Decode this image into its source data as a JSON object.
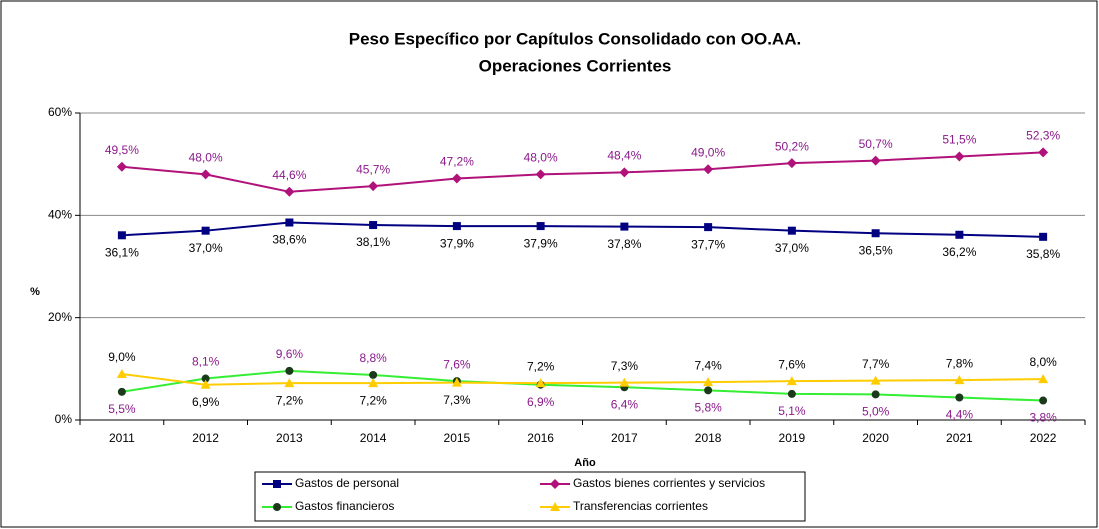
{
  "chart_data": {
    "type": "line",
    "title": "Peso Específico por Capítulos Consolidado con OO.AA.",
    "subtitle": "Operaciones Corrientes",
    "x_label": "Año",
    "y_label": "%",
    "categories": [
      "2011",
      "2012",
      "2013",
      "2014",
      "2015",
      "2016",
      "2017",
      "2018",
      "2019",
      "2020",
      "2021",
      "2022"
    ],
    "ylim": [
      0,
      60
    ],
    "yticks": [
      {
        "value": 0,
        "label": "0%"
      },
      {
        "value": 20,
        "label": "20%"
      },
      {
        "value": 40,
        "label": "40%"
      },
      {
        "value": 60,
        "label": "60%"
      }
    ],
    "grid": true,
    "legend": "bottom",
    "series": [
      {
        "name": "Gastos de personal",
        "color": "#000080",
        "marker": "square",
        "marker_color": "#000080",
        "label_color": "#000000",
        "values": [
          36.1,
          37.0,
          38.6,
          38.1,
          37.9,
          37.9,
          37.8,
          37.7,
          37.0,
          36.5,
          36.2,
          35.8
        ],
        "value_labels": [
          "36,1%",
          "37,0%",
          "38,6%",
          "38,1%",
          "37,9%",
          "37,9%",
          "37,8%",
          "37,7%",
          "37,0%",
          "36,5%",
          "36,2%",
          "35,8%"
        ]
      },
      {
        "name": "Gastos bienes corrientes y servicios",
        "color": "#b0127a",
        "marker": "diamond",
        "marker_color": "#b0127a",
        "label_color": "#8b1a8b",
        "values": [
          49.5,
          48.0,
          44.6,
          45.7,
          47.2,
          48.0,
          48.4,
          49.0,
          50.2,
          50.7,
          51.5,
          52.3
        ],
        "value_labels": [
          "49,5%",
          "48,0%",
          "44,6%",
          "45,7%",
          "47,2%",
          "48,0%",
          "48,4%",
          "49,0%",
          "50,2%",
          "50,7%",
          "51,5%",
          "52,3%"
        ]
      },
      {
        "name": "Gastos financieros",
        "color": "#33ee33",
        "marker": "circle",
        "marker_color": "#1a3a1a",
        "label_color": "#8b1a8b",
        "values": [
          5.5,
          8.1,
          9.6,
          8.8,
          7.6,
          6.9,
          6.4,
          5.8,
          5.1,
          5.0,
          4.4,
          3.8
        ],
        "value_labels": [
          "5,5%",
          "8,1%",
          "9,6%",
          "8,8%",
          "7,6%",
          "6,9%",
          "6,4%",
          "5,8%",
          "5,1%",
          "5,0%",
          "4,4%",
          "3,8%"
        ]
      },
      {
        "name": "Transferencias corrientes",
        "color": "#ffcc00",
        "marker": "triangle",
        "marker_color": "#ffcc00",
        "label_color": "#000000",
        "values": [
          9.0,
          6.9,
          7.2,
          7.2,
          7.3,
          7.2,
          7.3,
          7.4,
          7.6,
          7.7,
          7.8,
          8.0
        ],
        "value_labels": [
          "9,0%",
          "6,9%",
          "7,2%",
          "7,2%",
          "7,3%",
          "7,2%",
          "7,3%",
          "7,4%",
          "7,6%",
          "7,7%",
          "7,8%",
          "8,0%"
        ]
      }
    ]
  }
}
